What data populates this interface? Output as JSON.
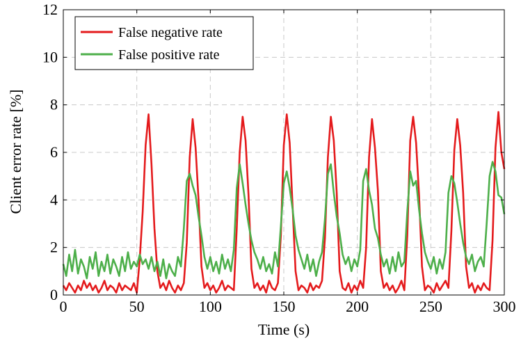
{
  "chart_data": {
    "type": "line",
    "title": "",
    "xlabel": "Time (s)",
    "ylabel": "Client error rate [%]",
    "xlim": [
      0,
      300
    ],
    "ylim": [
      0,
      12
    ],
    "x_ticks": [
      "0",
      "50",
      "100",
      "150",
      "200",
      "250",
      "300"
    ],
    "y_ticks": [
      "0",
      "2",
      "4",
      "6",
      "8",
      "10",
      "12"
    ],
    "grid": true,
    "legend_position": "top-left",
    "series": [
      {
        "name": "False negative rate",
        "color": "#e41a1c",
        "x": [
          0,
          2,
          4,
          6,
          8,
          10,
          12,
          14,
          16,
          18,
          20,
          22,
          24,
          26,
          28,
          30,
          32,
          34,
          36,
          38,
          40,
          42,
          44,
          46,
          48,
          50,
          52,
          54,
          56,
          58,
          60,
          62,
          64,
          66,
          68,
          70,
          72,
          74,
          76,
          78,
          80,
          82,
          84,
          86,
          88,
          90,
          92,
          94,
          96,
          98,
          100,
          102,
          104,
          106,
          108,
          110,
          112,
          114,
          116,
          118,
          120,
          122,
          124,
          126,
          128,
          130,
          132,
          134,
          136,
          138,
          140,
          142,
          144,
          146,
          148,
          150,
          152,
          154,
          156,
          158,
          160,
          162,
          164,
          166,
          168,
          170,
          172,
          174,
          176,
          178,
          180,
          182,
          184,
          186,
          188,
          190,
          192,
          194,
          196,
          198,
          200,
          202,
          204,
          206,
          208,
          210,
          212,
          214,
          216,
          218,
          220,
          222,
          224,
          226,
          228,
          230,
          232,
          234,
          236,
          238,
          240,
          242,
          244,
          246,
          248,
          250,
          252,
          254,
          256,
          258,
          260,
          262,
          264,
          266,
          268,
          270,
          272,
          274,
          276,
          278,
          280,
          282,
          284,
          286,
          288,
          290,
          292,
          294,
          296,
          298,
          300
        ],
        "values": [
          0.4,
          0.2,
          0.5,
          0.3,
          0.1,
          0.4,
          0.2,
          0.6,
          0.3,
          0.5,
          0.2,
          0.4,
          0.1,
          0.3,
          0.6,
          0.2,
          0.4,
          0.3,
          0.1,
          0.5,
          0.2,
          0.4,
          0.3,
          0.2,
          0.5,
          0.1,
          1.5,
          3.5,
          6.3,
          7.6,
          5.5,
          2.8,
          1.0,
          0.3,
          0.5,
          0.2,
          0.6,
          0.3,
          0.1,
          0.4,
          0.2,
          0.5,
          2.2,
          5.8,
          7.4,
          6.2,
          4.0,
          1.2,
          0.3,
          0.5,
          0.2,
          0.4,
          0.1,
          0.3,
          0.6,
          0.2,
          0.4,
          0.3,
          0.2,
          2.8,
          6.0,
          7.5,
          6.5,
          4.2,
          1.1,
          0.3,
          0.5,
          0.2,
          0.4,
          0.1,
          0.6,
          0.3,
          0.2,
          0.5,
          2.5,
          6.3,
          7.6,
          6.4,
          3.7,
          1.0,
          0.2,
          0.4,
          0.3,
          0.1,
          0.5,
          0.2,
          0.4,
          0.3,
          0.6,
          2.4,
          5.8,
          7.5,
          6.5,
          4.3,
          1.0,
          0.3,
          0.2,
          0.5,
          0.1,
          0.4,
          0.2,
          0.6,
          0.3,
          2.0,
          5.8,
          7.4,
          6.2,
          4.4,
          1.0,
          0.3,
          0.5,
          0.2,
          0.4,
          0.1,
          0.3,
          0.6,
          0.2,
          2.5,
          6.5,
          7.5,
          6.4,
          4.2,
          1.2,
          0.2,
          0.4,
          0.3,
          0.1,
          0.5,
          0.2,
          0.4,
          0.6,
          0.3,
          2.7,
          6.1,
          7.4,
          6.3,
          4.3,
          1.2,
          0.3,
          0.5,
          0.1,
          0.4,
          0.2,
          0.5,
          0.3,
          0.2,
          2.3,
          6.2,
          7.7,
          6.0,
          5.3
        ]
      },
      {
        "name": "False positive rate",
        "color": "#4daf4a",
        "x": [
          0,
          2,
          4,
          6,
          8,
          10,
          12,
          14,
          16,
          18,
          20,
          22,
          24,
          26,
          28,
          30,
          32,
          34,
          36,
          38,
          40,
          42,
          44,
          46,
          48,
          50,
          52,
          54,
          56,
          58,
          60,
          62,
          64,
          66,
          68,
          70,
          72,
          74,
          76,
          78,
          80,
          82,
          84,
          86,
          88,
          90,
          92,
          94,
          96,
          98,
          100,
          102,
          104,
          106,
          108,
          110,
          112,
          114,
          116,
          118,
          120,
          122,
          124,
          126,
          128,
          130,
          132,
          134,
          136,
          138,
          140,
          142,
          144,
          146,
          148,
          150,
          152,
          154,
          156,
          158,
          160,
          162,
          164,
          166,
          168,
          170,
          172,
          174,
          176,
          178,
          180,
          182,
          184,
          186,
          188,
          190,
          192,
          194,
          196,
          198,
          200,
          202,
          204,
          206,
          208,
          210,
          212,
          214,
          216,
          218,
          220,
          222,
          224,
          226,
          228,
          230,
          232,
          234,
          236,
          238,
          240,
          242,
          244,
          246,
          248,
          250,
          252,
          254,
          256,
          258,
          260,
          262,
          264,
          266,
          268,
          270,
          272,
          274,
          276,
          278,
          280,
          282,
          284,
          286,
          288,
          290,
          292,
          294,
          296,
          298,
          300
        ],
        "values": [
          1.3,
          0.8,
          1.7,
          1.0,
          1.9,
          0.9,
          1.5,
          1.2,
          0.7,
          1.6,
          1.1,
          1.8,
          0.8,
          1.4,
          1.0,
          1.7,
          0.9,
          1.5,
          1.2,
          0.8,
          1.6,
          1.0,
          1.8,
          1.1,
          1.4,
          1.2,
          1.7,
          1.3,
          1.5,
          1.1,
          1.6,
          1.0,
          1.4,
          0.8,
          1.5,
          0.7,
          1.3,
          1.0,
          0.8,
          1.6,
          1.2,
          2.8,
          4.8,
          5.1,
          4.6,
          4.2,
          3.3,
          2.5,
          1.6,
          1.1,
          1.6,
          1.0,
          1.4,
          0.9,
          1.7,
          1.1,
          1.5,
          1.0,
          1.9,
          4.5,
          5.5,
          4.7,
          3.8,
          3.0,
          2.3,
          1.8,
          1.5,
          1.1,
          1.6,
          1.0,
          1.3,
          0.9,
          1.8,
          1.2,
          2.9,
          4.7,
          5.2,
          4.5,
          3.6,
          2.5,
          1.9,
          1.5,
          1.1,
          1.7,
          1.0,
          1.5,
          0.8,
          1.4,
          1.8,
          3.2,
          5.1,
          5.5,
          4.3,
          3.3,
          2.6,
          1.7,
          1.3,
          1.6,
          1.0,
          1.5,
          1.2,
          1.9,
          4.8,
          5.3,
          4.4,
          3.8,
          2.8,
          2.4,
          1.7,
          1.2,
          1.5,
          0.9,
          1.6,
          1.0,
          1.8,
          1.2,
          1.4,
          3.5,
          5.2,
          4.6,
          4.8,
          3.6,
          2.6,
          1.8,
          1.4,
          1.1,
          1.6,
          0.9,
          1.5,
          1.1,
          1.8,
          4.3,
          5.0,
          4.7,
          3.9,
          3.0,
          2.2,
          1.6,
          1.3,
          1.7,
          1.0,
          1.4,
          1.6,
          1.2,
          3.0,
          5.0,
          5.6,
          5.2,
          4.2,
          4.1,
          3.4
        ]
      }
    ]
  }
}
